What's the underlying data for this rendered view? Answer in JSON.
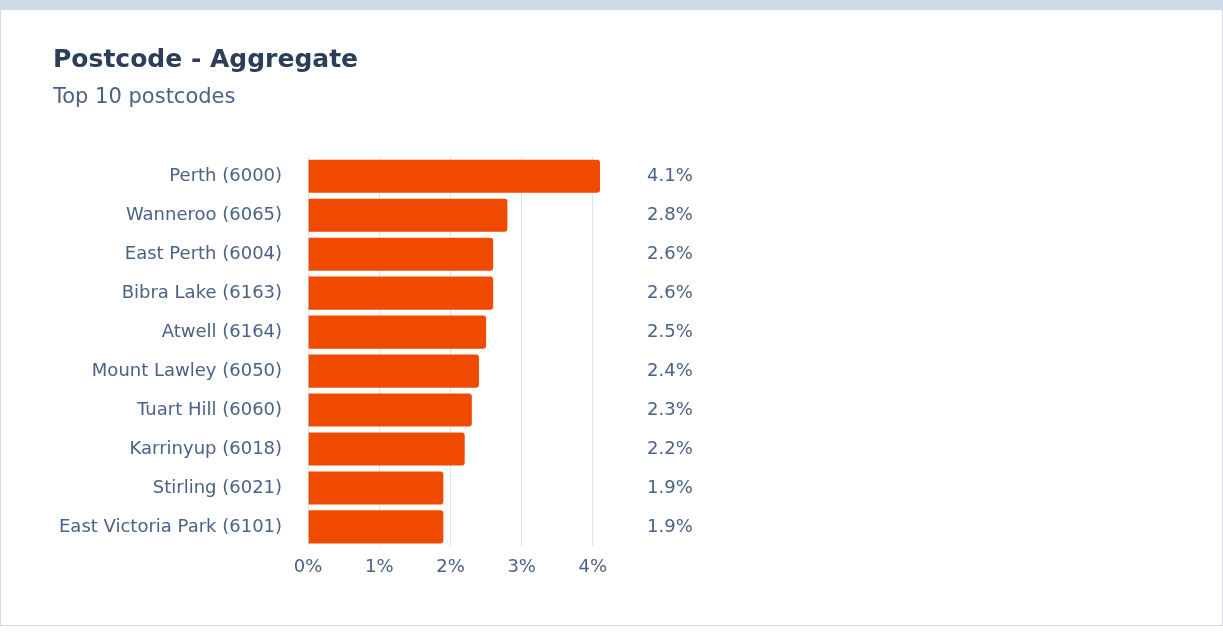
{
  "chart_data": {
    "type": "bar",
    "title": "Postcode - Aggregate",
    "subtitle": "Top 10 postcodes",
    "orientation": "horizontal",
    "categories": [
      "Perth (6000)",
      "Wanneroo (6065)",
      "East Perth (6004)",
      "Bibra Lake (6163)",
      "Atwell (6164)",
      "Mount Lawley (6050)",
      "Tuart Hill (6060)",
      "Karrinyup (6018)",
      "Stirling (6021)",
      "East Victoria Park (6101)"
    ],
    "values": [
      4.1,
      2.8,
      2.6,
      2.6,
      2.5,
      2.4,
      2.3,
      2.2,
      1.9,
      1.9
    ],
    "value_labels": [
      "4.1%",
      "2.8%",
      "2.6%",
      "2.6%",
      "2.5%",
      "2.4%",
      "2.3%",
      "2.2%",
      "1.9%",
      "1.9%"
    ],
    "color": "#f04a00",
    "xlim": [
      0,
      4.1
    ],
    "xticks": [
      {
        "value": 0,
        "label": "0%"
      },
      {
        "value": 1,
        "label": "1%"
      },
      {
        "value": 2,
        "label": "2%"
      },
      {
        "value": 3,
        "label": "3%"
      },
      {
        "value": 4,
        "label": "4%"
      }
    ],
    "grid": "x",
    "legend": false
  }
}
